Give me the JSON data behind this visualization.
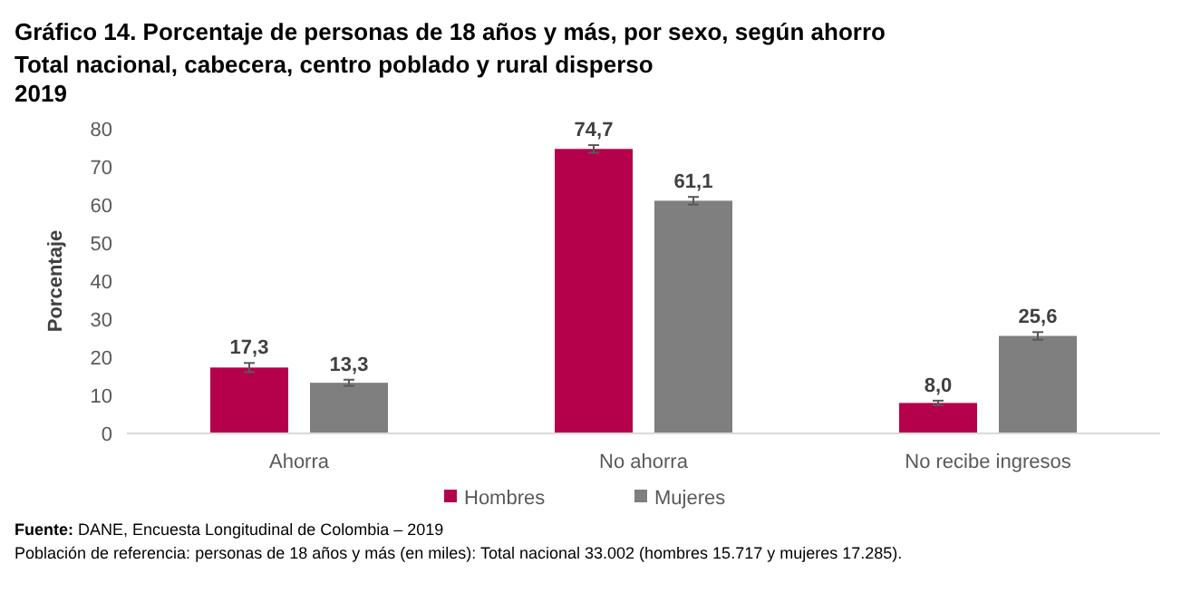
{
  "chart_data": {
    "type": "bar",
    "title": "Gráfico 14. Porcentaje de personas de 18 años y más, por sexo, según ahorro",
    "subtitle": "Total nacional, cabecera, centro poblado y rural disperso\n2019",
    "ylabel": "Porcentaje",
    "categories": [
      "Ahorra",
      "No ahorra",
      "No recibe ingresos"
    ],
    "series": [
      {
        "name": "Hombres",
        "color": "#b5004b",
        "values": [
          17.3,
          74.7,
          8.0
        ],
        "value_labels": [
          "17,3",
          "74,7",
          "8,0"
        ],
        "errors": [
          1.2,
          1.0,
          0.6
        ]
      },
      {
        "name": "Mujeres",
        "color": "#7f7f7f",
        "values": [
          13.3,
          61.1,
          25.6
        ],
        "value_labels": [
          "13,3",
          "61,1",
          "25,6"
        ],
        "errors": [
          0.8,
          1.0,
          1.0
        ]
      }
    ],
    "ylim": [
      0,
      80
    ],
    "yticks": [
      0,
      10,
      20,
      30,
      40,
      50,
      60,
      70,
      80
    ],
    "grid": false,
    "legend": "bottom",
    "annotations": [
      "Fuente: DANE, Encuesta Longitudinal de Colombia – 2019",
      "Población de referencia: personas de 18 años y más (en miles): Total nacional 33.002 (hombres 15.717 y mujeres 17.285)."
    ]
  }
}
